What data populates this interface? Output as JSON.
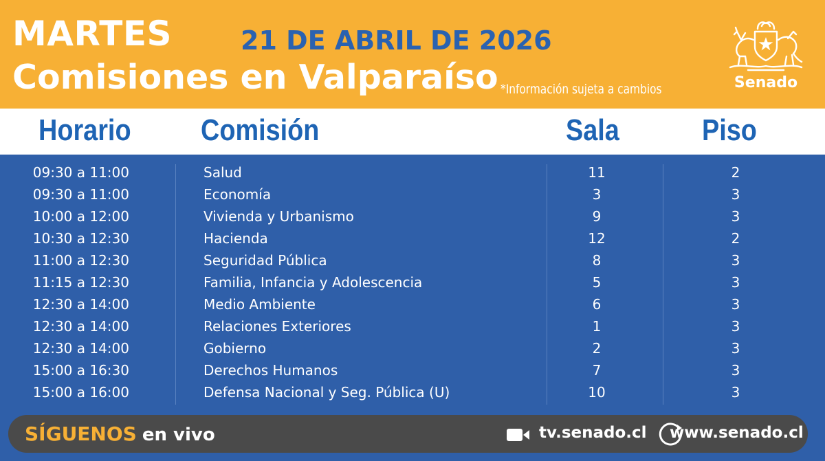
{
  "header": {
    "day": "MARTES",
    "title": "Comisiones en Valparaíso",
    "date": "21 DE ABRIL DE 2026",
    "disclaimer": "*Información sujeta a cambios",
    "brand": "Senado"
  },
  "columns": {
    "horario": "Horario",
    "comision": "Comisión",
    "sala": "Sala",
    "piso": "Piso"
  },
  "rows": [
    {
      "horario": "09:30 a 11:00",
      "comision": "Salud",
      "sala": "11",
      "piso": "2"
    },
    {
      "horario": "09:30 a 11:00",
      "comision": "Economía",
      "sala": "3",
      "piso": "3"
    },
    {
      "horario": "10:00 a 12:00",
      "comision": "Vivienda y Urbanismo",
      "sala": "9",
      "piso": "3"
    },
    {
      "horario": "10:30 a 12:30",
      "comision": "Hacienda",
      "sala": "12",
      "piso": "2"
    },
    {
      "horario": "11:00 a 12:30",
      "comision": "Seguridad Pública",
      "sala": "8",
      "piso": "3"
    },
    {
      "horario": "11:15 a 12:30",
      "comision": "Familia, Infancia y Adolescencia",
      "sala": "5",
      "piso": "3"
    },
    {
      "horario": "12:30 a 14:00",
      "comision": "Medio Ambiente",
      "sala": "6",
      "piso": "3"
    },
    {
      "horario": "12:30 a 14:00",
      "comision": "Relaciones Exteriores",
      "sala": "1",
      "piso": "3"
    },
    {
      "horario": "12:30 a 14:00",
      "comision": "Gobierno",
      "sala": "2",
      "piso": "3"
    },
    {
      "horario": "15:00 a 16:30",
      "comision": "Derechos Humanos",
      "sala": "7",
      "piso": "3"
    },
    {
      "horario": "15:00 a 16:00",
      "comision": "Defensa Nacional y Seg. Pública (U)",
      "sala": "10",
      "piso": "3"
    }
  ],
  "footer": {
    "follow_emphasis": "SÍGUENOS",
    "follow_rest": "en vivo",
    "tv_icon": "video-camera-icon",
    "tv_link": "tv.senado.cl",
    "web_icon": "globe-arrow-icon",
    "web_link": "www.senado.cl"
  },
  "colors": {
    "orange": "#f7b035",
    "blue_bg": "#2f5fa9",
    "blue_text": "#1e64b4",
    "footer_bg": "#4a4a4a"
  }
}
